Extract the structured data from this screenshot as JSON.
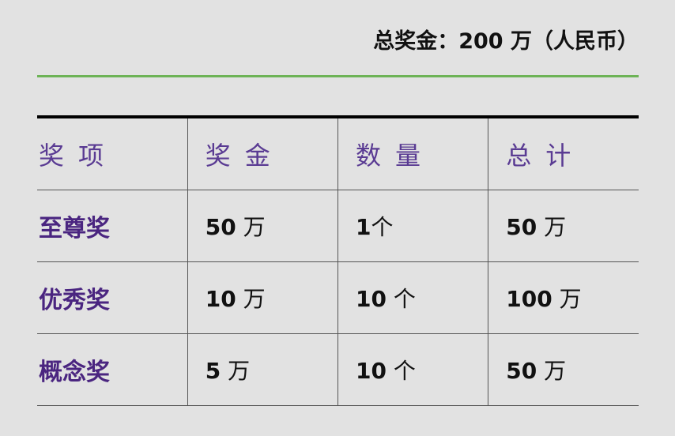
{
  "title": "总奖金：200 万（人民币）",
  "colors": {
    "background": "#e2e2e2",
    "accent_line": "#6db356",
    "header_text": "#5a3b93",
    "label_text": "#4a2580"
  },
  "table": {
    "headers": [
      "奖项",
      "奖金",
      "数量",
      "总计"
    ],
    "rows": [
      {
        "name": "至尊奖",
        "prize": "50",
        "prize_unit": "万",
        "count": "1",
        "count_unit": "个",
        "total": "50",
        "total_unit": "万"
      },
      {
        "name": "优秀奖",
        "prize": "10",
        "prize_unit": "万",
        "count": "10",
        "count_unit": "个",
        "total": "100",
        "total_unit": "万"
      },
      {
        "name": "概念奖",
        "prize": "5",
        "prize_unit": "万",
        "count": "10",
        "count_unit": "个",
        "total": "50",
        "total_unit": "万"
      }
    ]
  }
}
